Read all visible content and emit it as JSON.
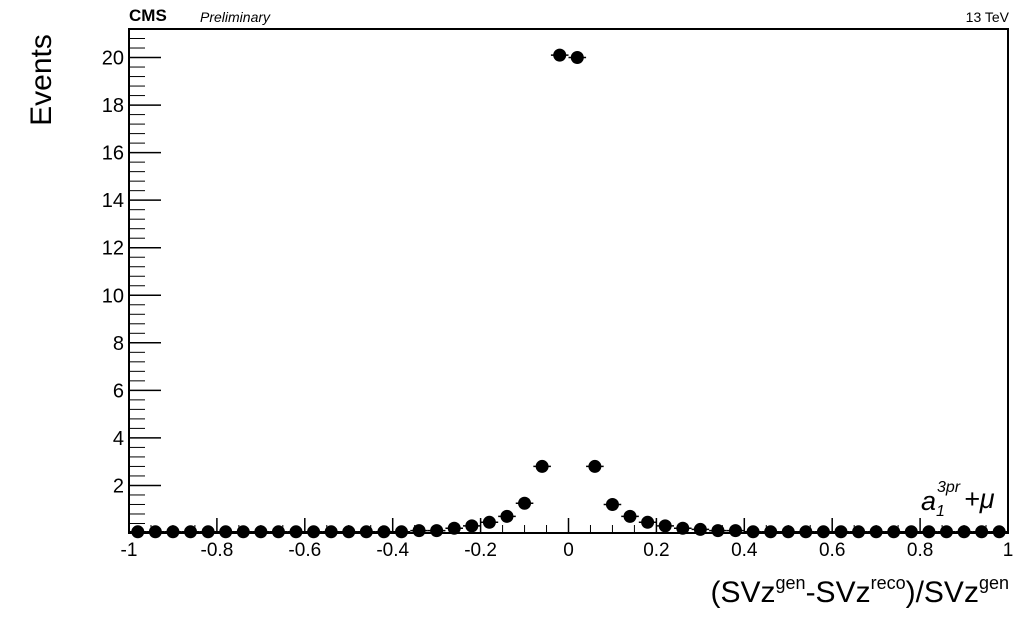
{
  "header": {
    "experiment": "CMS",
    "status": "Preliminary",
    "energy": "13 TeV"
  },
  "chart_data": {
    "type": "scatter",
    "xlabel": {
      "parts": [
        {
          "text": "(SVz",
          "sup": false
        },
        {
          "text": "gen",
          "sup": true
        },
        {
          "text": "-SVz",
          "sup": false
        },
        {
          "text": "reco",
          "sup": true
        },
        {
          "text": ")/SVz",
          "sup": false
        },
        {
          "text": "gen",
          "sup": true
        }
      ]
    },
    "ylabel": "Events",
    "xlim": [
      -1,
      1
    ],
    "ylim": [
      0,
      21.2
    ],
    "x_ticks": [
      -1,
      -0.8,
      -0.6,
      -0.4,
      -0.2,
      0,
      0.2,
      0.4,
      0.6,
      0.8,
      1
    ],
    "x_tick_labels": [
      "-1",
      "-0.8",
      "-0.6",
      "-0.4",
      "-0.2",
      "0",
      "0.2",
      "0.4",
      "0.6",
      "0.8",
      "1"
    ],
    "y_ticks": [
      2,
      4,
      6,
      8,
      10,
      12,
      14,
      16,
      18,
      20
    ],
    "y_tick_labels": [
      "2",
      "4",
      "6",
      "8",
      "10",
      "12",
      "14",
      "16",
      "18",
      "20"
    ],
    "grid": false,
    "annotation": {
      "base": "a",
      "sup": "3pr",
      "sub": "1",
      "suffix": "+μ"
    },
    "series": [
      {
        "marker_color": "#000000",
        "points": [
          {
            "x": -0.98,
            "y": 0.05
          },
          {
            "x": -0.94,
            "y": 0.05
          },
          {
            "x": -0.9,
            "y": 0.05
          },
          {
            "x": -0.86,
            "y": 0.05
          },
          {
            "x": -0.82,
            "y": 0.05
          },
          {
            "x": -0.78,
            "y": 0.05
          },
          {
            "x": -0.74,
            "y": 0.05
          },
          {
            "x": -0.7,
            "y": 0.05
          },
          {
            "x": -0.66,
            "y": 0.05
          },
          {
            "x": -0.62,
            "y": 0.05
          },
          {
            "x": -0.58,
            "y": 0.05
          },
          {
            "x": -0.54,
            "y": 0.05
          },
          {
            "x": -0.5,
            "y": 0.05
          },
          {
            "x": -0.46,
            "y": 0.05
          },
          {
            "x": -0.42,
            "y": 0.05
          },
          {
            "x": -0.38,
            "y": 0.05
          },
          {
            "x": -0.34,
            "y": 0.1
          },
          {
            "x": -0.3,
            "y": 0.1
          },
          {
            "x": -0.26,
            "y": 0.2
          },
          {
            "x": -0.22,
            "y": 0.3
          },
          {
            "x": -0.18,
            "y": 0.45
          },
          {
            "x": -0.14,
            "y": 0.7
          },
          {
            "x": -0.1,
            "y": 1.25
          },
          {
            "x": -0.06,
            "y": 2.8
          },
          {
            "x": -0.02,
            "y": 20.1
          },
          {
            "x": 0.02,
            "y": 20.0
          },
          {
            "x": 0.06,
            "y": 2.8
          },
          {
            "x": 0.1,
            "y": 1.2
          },
          {
            "x": 0.14,
            "y": 0.7
          },
          {
            "x": 0.18,
            "y": 0.45
          },
          {
            "x": 0.22,
            "y": 0.3
          },
          {
            "x": 0.26,
            "y": 0.2
          },
          {
            "x": 0.3,
            "y": 0.15
          },
          {
            "x": 0.34,
            "y": 0.1
          },
          {
            "x": 0.38,
            "y": 0.1
          },
          {
            "x": 0.42,
            "y": 0.05
          },
          {
            "x": 0.46,
            "y": 0.05
          },
          {
            "x": 0.5,
            "y": 0.05
          },
          {
            "x": 0.54,
            "y": 0.05
          },
          {
            "x": 0.58,
            "y": 0.05
          },
          {
            "x": 0.62,
            "y": 0.05
          },
          {
            "x": 0.66,
            "y": 0.05
          },
          {
            "x": 0.7,
            "y": 0.05
          },
          {
            "x": 0.74,
            "y": 0.05
          },
          {
            "x": 0.78,
            "y": 0.05
          },
          {
            "x": 0.82,
            "y": 0.05
          },
          {
            "x": 0.86,
            "y": 0.05
          },
          {
            "x": 0.9,
            "y": 0.05
          },
          {
            "x": 0.94,
            "y": 0.05
          },
          {
            "x": 0.98,
            "y": 0.05
          }
        ]
      }
    ]
  }
}
